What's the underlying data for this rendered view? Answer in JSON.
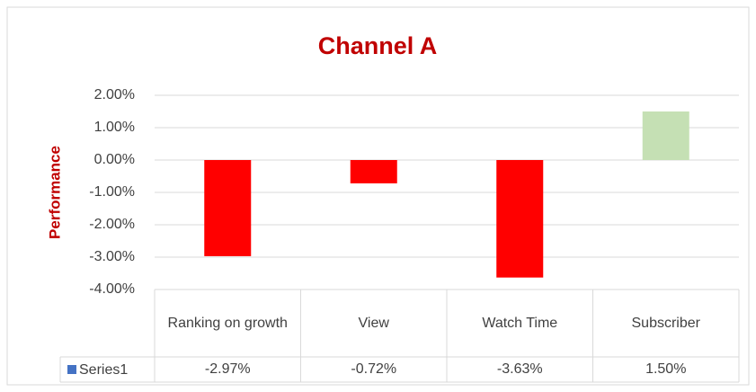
{
  "chart_data": {
    "type": "bar",
    "title": "Channel A",
    "y_label": "Performance",
    "categories": [
      "Ranking on growth",
      "View",
      "Watch Time",
      "Subscriber"
    ],
    "series": [
      {
        "name": "Series1",
        "color": "#4472c4",
        "values": [
          -2.97,
          -0.72,
          -3.63,
          1.5
        ],
        "value_labels": [
          "-2.97%",
          "-0.72%",
          "-3.63%",
          "1.50%"
        ],
        "bar_colors": [
          "#ff0000",
          "#ff0000",
          "#ff0000",
          "#c5e0b4"
        ]
      }
    ],
    "ylim": [
      -4,
      2
    ],
    "yticks": [
      {
        "value": 2,
        "label": "2.00%"
      },
      {
        "value": 1,
        "label": "1.00%"
      },
      {
        "value": 0,
        "label": "0.00%"
      },
      {
        "value": -1,
        "label": "-1.00%"
      },
      {
        "value": -2,
        "label": "-2.00%"
      },
      {
        "value": -3,
        "label": "-3.00%"
      },
      {
        "value": -4,
        "label": "-4.00%"
      }
    ],
    "grid": true,
    "data_table": true
  }
}
